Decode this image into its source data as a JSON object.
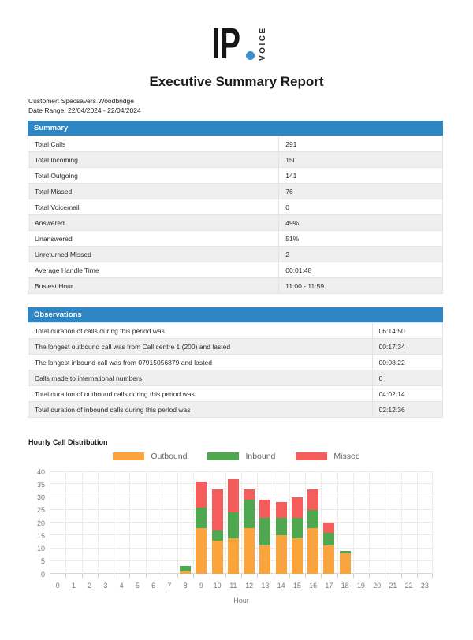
{
  "logo": {
    "text": "IP",
    "vertical_text": "VOICE"
  },
  "title": "Executive Summary Report",
  "meta": {
    "customer_line": "Customer: Specsavers Woodbridge",
    "date_range_line": "Date Range: 22/04/2024 - 22/04/2024"
  },
  "summary": {
    "header": "Summary",
    "rows": [
      {
        "label": "Total Calls",
        "value": "291"
      },
      {
        "label": "Total Incoming",
        "value": "150"
      },
      {
        "label": "Total Outgoing",
        "value": "141"
      },
      {
        "label": "Total Missed",
        "value": "76"
      },
      {
        "label": "Total Voicemail",
        "value": "0"
      },
      {
        "label": "Answered",
        "value": "49%"
      },
      {
        "label": "Unanswered",
        "value": "51%"
      },
      {
        "label": "Unreturned Missed",
        "value": "2"
      },
      {
        "label": "Average Handle Time",
        "value": "00:01:48"
      },
      {
        "label": "Busiest Hour",
        "value": "11:00 - 11:59"
      }
    ]
  },
  "observations": {
    "header": "Observations",
    "rows": [
      {
        "label": "Total duration of calls during this period was",
        "value": "06:14:50"
      },
      {
        "label": "The longest outbound call was from Call centre 1 (200) and lasted",
        "value": "00:17:34"
      },
      {
        "label": "The longest inbound call was from 07915056879 and lasted",
        "value": "00:08:22"
      },
      {
        "label": "Calls made to international numbers",
        "value": "0"
      },
      {
        "label": "Total duration of outbound calls during this period was",
        "value": "04:02:14"
      },
      {
        "label": "Total duration of inbound calls during this period was",
        "value": "02:12:36"
      }
    ]
  },
  "chart_data": {
    "type": "bar",
    "stacked": true,
    "title": "Hourly Call Distribution",
    "xlabel": "Hour",
    "ylabel": "",
    "ylim": [
      0,
      40
    ],
    "ytick_step": 5,
    "grid": true,
    "legend_position": "top",
    "categories": [
      "0",
      "1",
      "2",
      "3",
      "4",
      "5",
      "6",
      "7",
      "8",
      "9",
      "10",
      "11",
      "12",
      "13",
      "14",
      "15",
      "16",
      "17",
      "18",
      "19",
      "20",
      "21",
      "22",
      "23"
    ],
    "series": [
      {
        "name": "Outbound",
        "color": "#F9A43C",
        "values": [
          0,
          0,
          0,
          0,
          0,
          0,
          0,
          0,
          1,
          18,
          13,
          14,
          18,
          11,
          15,
          14,
          18,
          11,
          8,
          0,
          0,
          0,
          0,
          0
        ]
      },
      {
        "name": "Inbound",
        "color": "#4FA74F",
        "values": [
          0,
          0,
          0,
          0,
          0,
          0,
          0,
          0,
          2,
          8,
          4,
          10,
          11,
          11,
          7,
          8,
          7,
          5,
          1,
          0,
          0,
          0,
          0,
          0
        ]
      },
      {
        "name": "Missed",
        "color": "#F55C5C",
        "values": [
          0,
          0,
          0,
          0,
          0,
          0,
          0,
          0,
          0,
          10,
          16,
          13,
          4,
          7,
          6,
          8,
          8,
          4,
          0,
          0,
          0,
          0,
          0,
          0
        ]
      }
    ]
  },
  "colors": {
    "header_bar": "#2E86C4",
    "header_text": "#ffffff",
    "row_alt": "#efefef",
    "logo_dot": "#3D8FC9",
    "grid_line": "#eaeaea"
  }
}
